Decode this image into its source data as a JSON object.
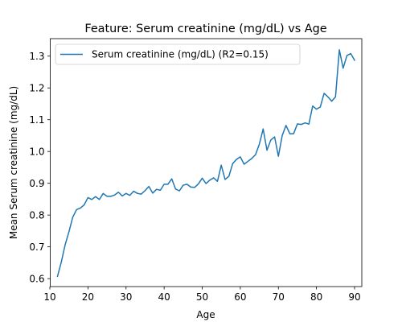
{
  "chart_data": {
    "type": "line",
    "title": "Feature: Serum creatinine (mg/dL) vs Age",
    "xlabel": "Age",
    "ylabel": "Mean Serum creatinine (mg/dL)",
    "xlim": [
      10.1,
      91.9
    ],
    "ylim": [
      0.575,
      1.355
    ],
    "xticks": [
      10,
      20,
      30,
      40,
      50,
      60,
      70,
      80,
      90
    ],
    "yticks": [
      0.6,
      0.7,
      0.8,
      0.9,
      1.0,
      1.1,
      1.2,
      1.3
    ],
    "ytick_labels": [
      "0.6",
      "0.7",
      "0.8",
      "0.9",
      "1.0",
      "1.1",
      "1.2",
      "1.3"
    ],
    "grid": false,
    "legend_position": "top-left",
    "series": [
      {
        "name": "Serum creatinine (mg/dL) (R2=0.15)",
        "color": "#1f77b4",
        "x": [
          12,
          13,
          14,
          15,
          16,
          17,
          18,
          19,
          20,
          21,
          22,
          23,
          24,
          25,
          26,
          27,
          28,
          29,
          30,
          31,
          32,
          33,
          34,
          35,
          36,
          37,
          38,
          39,
          40,
          41,
          42,
          43,
          44,
          45,
          46,
          47,
          48,
          49,
          50,
          51,
          52,
          53,
          54,
          55,
          56,
          57,
          58,
          59,
          60,
          61,
          62,
          63,
          64,
          65,
          66,
          67,
          68,
          69,
          70,
          71,
          72,
          73,
          74,
          75,
          76,
          77,
          78,
          79,
          80,
          81,
          82,
          83,
          84,
          85,
          86,
          87,
          88,
          89,
          90
        ],
        "y": [
          0.607,
          0.652,
          0.706,
          0.747,
          0.793,
          0.817,
          0.822,
          0.832,
          0.855,
          0.849,
          0.858,
          0.849,
          0.868,
          0.859,
          0.859,
          0.863,
          0.872,
          0.86,
          0.868,
          0.862,
          0.875,
          0.868,
          0.866,
          0.877,
          0.89,
          0.869,
          0.881,
          0.878,
          0.897,
          0.897,
          0.914,
          0.882,
          0.876,
          0.894,
          0.897,
          0.888,
          0.887,
          0.898,
          0.916,
          0.899,
          0.91,
          0.917,
          0.906,
          0.957,
          0.912,
          0.922,
          0.962,
          0.975,
          0.983,
          0.96,
          0.969,
          0.978,
          0.99,
          1.023,
          1.071,
          1.004,
          1.036,
          1.046,
          0.985,
          1.05,
          1.082,
          1.056,
          1.056,
          1.087,
          1.085,
          1.09,
          1.086,
          1.143,
          1.133,
          1.14,
          1.183,
          1.172,
          1.158,
          1.172,
          1.32,
          1.262,
          1.302,
          1.308,
          1.287
        ]
      }
    ]
  }
}
